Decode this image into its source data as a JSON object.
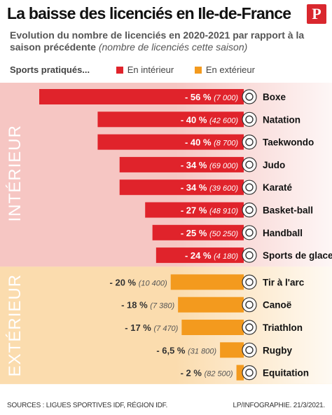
{
  "title": "La baisse des licenciés en Ile-de-France",
  "logo_letter": "P",
  "subtitle_main": "Evolution du nombre de licenciés en 2020-2021 par rapport à la saison précédente",
  "subtitle_note": "(nombre de licenciés cette saison)",
  "legend": {
    "lead": "Sports pratiqués...",
    "indoor": "En intérieur",
    "outdoor": "En extérieur"
  },
  "colors": {
    "indoor": "#e0232b",
    "outdoor": "#f39a1e",
    "indoor_band": "#f6c6c3",
    "outdoor_band": "#fbdcae"
  },
  "sections": {
    "indoor": "INTÉRIEUR",
    "outdoor": "EXTÉRIEUR"
  },
  "chart_data": {
    "type": "bar",
    "orientation": "horizontal",
    "series": [
      {
        "name": "En intérieur",
        "categories": [
          "Boxe",
          "Natation",
          "Taekwondo",
          "Judo",
          "Karaté",
          "Basket-ball",
          "Handball",
          "Sports de glace"
        ],
        "values": [
          -56,
          -40,
          -40,
          -34,
          -34,
          -27,
          -25,
          -24
        ],
        "labels": [
          "- 56 %",
          "- 40 %",
          "- 40 %",
          "- 34 %",
          "- 34 %",
          "- 27 %",
          "- 25 %",
          "- 24 %"
        ],
        "counts": [
          "(7 000)",
          "(42 600)",
          "(8 700)",
          "(69 000)",
          "(39 600)",
          "(48 910)",
          "(50 250)",
          "(4 180)"
        ],
        "icons": [
          "boxing-glove-icon",
          "swimmer-icon",
          "taekwondo-kick-icon",
          "judo-icon",
          "karate-icon",
          "basketball-icon",
          "handball-icon",
          "ice-skate-icon"
        ]
      },
      {
        "name": "En extérieur",
        "categories": [
          "Tir à l'arc",
          "Canoë",
          "Triathlon",
          "Rugby",
          "Equitation"
        ],
        "values": [
          -20,
          -18,
          -17,
          -6.5,
          -2
        ],
        "labels": [
          "- 20 %",
          "- 18 %",
          "- 17 %",
          "- 6,5 %",
          "- 2 %"
        ],
        "counts": [
          "(10 400)",
          "(7 380)",
          "(7 470)",
          "(31 800)",
          "(82 500)"
        ],
        "icons": [
          "archery-target-icon",
          "canoe-icon",
          "triathlon-cyclist-icon",
          "rugby-ball-icon",
          "horse-icon"
        ]
      }
    ],
    "xlim": [
      -56,
      0
    ]
  },
  "footer": {
    "sources": "SOURCES : LIGUES SPORTIVES IDF, RÉGION IDF.",
    "credit": "LP/INFOGRAPHIE.  21/3/2021."
  }
}
